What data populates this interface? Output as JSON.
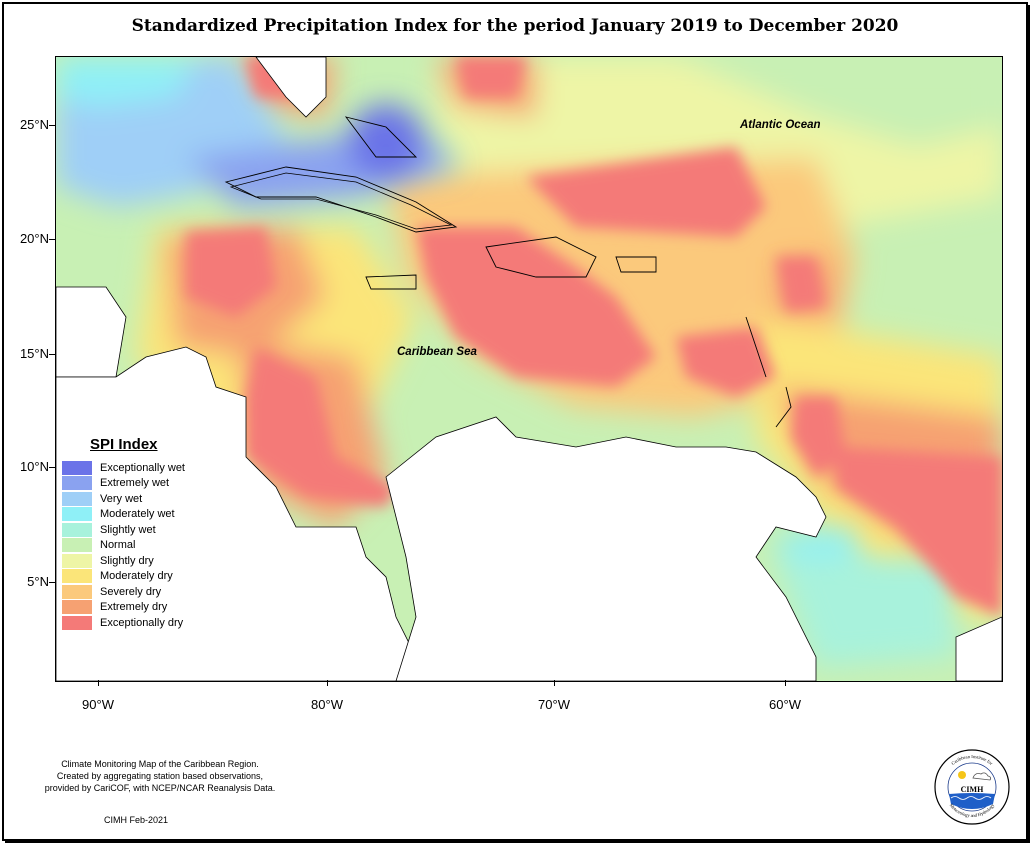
{
  "title": "Standardized Precipitation Index for the period January 2019 to December 2020",
  "map": {
    "labels": {
      "atlantic": "Atlantic Ocean",
      "caribbean": "Caribbean Sea"
    },
    "lat_ticks": [
      {
        "value": 25,
        "label": "25°N"
      },
      {
        "value": 20,
        "label": "20°N"
      },
      {
        "value": 15,
        "label": "15°N"
      },
      {
        "value": 10,
        "label": "10°N"
      },
      {
        "value": 5,
        "label": "5°N"
      }
    ],
    "lon_ticks": [
      {
        "value": -90,
        "label": "90°W"
      },
      {
        "value": -80,
        "label": "80°W"
      },
      {
        "value": -70,
        "label": "70°W"
      },
      {
        "value": -60,
        "label": "60°W"
      }
    ],
    "extent": {
      "lon_min": -92,
      "lon_max": -50.5,
      "lat_min": 1.5,
      "lat_max": 28.5
    }
  },
  "legend": {
    "title": "SPI Index",
    "items": [
      {
        "label": "Exceptionally wet",
        "color": "#6b73e8"
      },
      {
        "label": "Extremely wet",
        "color": "#8aa2f0"
      },
      {
        "label": "Very wet",
        "color": "#9fcff7"
      },
      {
        "label": "Moderately wet",
        "color": "#8ff0f7"
      },
      {
        "label": "Slightly wet",
        "color": "#a8f2dc"
      },
      {
        "label": "Normal",
        "color": "#c8f0b4"
      },
      {
        "label": "Slightly dry",
        "color": "#eef5a6"
      },
      {
        "label": "Moderately dry",
        "color": "#fbe579"
      },
      {
        "label": "Severely dry",
        "color": "#fbc97c"
      },
      {
        "label": "Extremely dry",
        "color": "#f6a172"
      },
      {
        "label": "Exceptionally dry",
        "color": "#f47a78"
      }
    ]
  },
  "credits": {
    "line1": "Climate Monitoring Map of the Caribbean Region.",
    "line2": "Created by aggregating station based observations,",
    "line3": "provided by CariCOF, with NCEP/NCAR Reanalysis Data.",
    "stamp": "CIMH Feb-2021"
  },
  "logo": {
    "text": "CIMH",
    "ring_top": "Caribbean Institute for",
    "ring_bottom": "Meteorology and Hydrology"
  }
}
